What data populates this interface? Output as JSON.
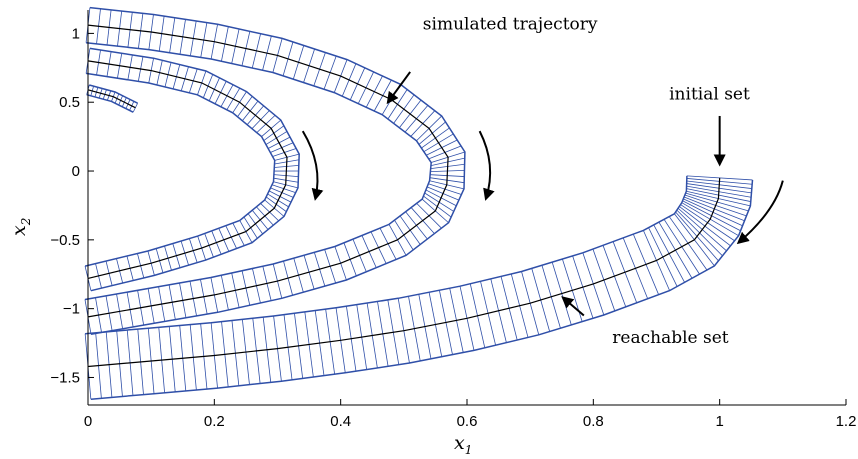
{
  "chart_data": {
    "type": "line",
    "title": "",
    "xlabel": "x",
    "xlabel_sub": "1",
    "ylabel": "x",
    "ylabel_sub": "2",
    "xlim": [
      0,
      1.2
    ],
    "ylim": [
      -1.7,
      1.17
    ],
    "xticks": [
      "0",
      "0.2",
      "0.4",
      "0.6",
      "0.8",
      "1",
      "1.2"
    ],
    "yticks": [
      "1",
      "0.5",
      "0",
      "−0.5",
      "−1",
      "−1.5"
    ],
    "xtick_values": [
      0,
      0.2,
      0.4,
      0.6,
      0.8,
      1.0,
      1.2
    ],
    "ytick_values": [
      1,
      0.5,
      0,
      -0.5,
      -1,
      -1.5
    ],
    "grid": false,
    "colors": {
      "band_edge": "#2f4fa8",
      "hatch": "#2f4fa8",
      "trajectory": "#000000",
      "arrow": "#000000"
    },
    "series": [
      {
        "role": "reachable-set-1",
        "center": [
          [
            0.0,
            1.06
          ],
          [
            0.1,
            1.01
          ],
          [
            0.2,
            0.94
          ],
          [
            0.3,
            0.84
          ],
          [
            0.4,
            0.69
          ],
          [
            0.48,
            0.52
          ],
          [
            0.54,
            0.31
          ],
          [
            0.57,
            0.1
          ],
          [
            0.568,
            -0.1
          ],
          [
            0.55,
            -0.29
          ],
          [
            0.49,
            -0.5
          ],
          [
            0.4,
            -0.67
          ],
          [
            0.3,
            -0.8
          ],
          [
            0.2,
            -0.9
          ],
          [
            0.1,
            -0.98
          ],
          [
            0.0,
            -1.06
          ]
        ],
        "half_width": 0.028
      },
      {
        "role": "reachable-set-2",
        "center": [
          [
            0.0,
            0.8
          ],
          [
            0.1,
            0.73
          ],
          [
            0.18,
            0.64
          ],
          [
            0.24,
            0.5
          ],
          [
            0.29,
            0.31
          ],
          [
            0.315,
            0.1
          ],
          [
            0.313,
            -0.1
          ],
          [
            0.295,
            -0.27
          ],
          [
            0.25,
            -0.44
          ],
          [
            0.18,
            -0.56
          ],
          [
            0.1,
            -0.67
          ],
          [
            0.0,
            -0.78
          ]
        ],
        "half_width": 0.02
      },
      {
        "role": "reachable-set-3",
        "center": [
          [
            0.0,
            0.59
          ],
          [
            0.04,
            0.54
          ],
          [
            0.075,
            0.46
          ]
        ],
        "half_width": 0.008
      },
      {
        "role": "reachable-set-4",
        "center": [
          [
            1.0,
            -0.05
          ],
          [
            0.998,
            -0.2
          ],
          [
            0.985,
            -0.35
          ],
          [
            0.96,
            -0.5
          ],
          [
            0.9,
            -0.65
          ],
          [
            0.8,
            -0.82
          ],
          [
            0.7,
            -0.96
          ],
          [
            0.6,
            -1.07
          ],
          [
            0.5,
            -1.16
          ],
          [
            0.4,
            -1.23
          ],
          [
            0.3,
            -1.29
          ],
          [
            0.2,
            -1.34
          ],
          [
            0.1,
            -1.38
          ],
          [
            0.0,
            -1.42
          ]
        ],
        "half_width": 0.052
      }
    ],
    "annotations": [
      {
        "text": "simulated trajectory",
        "at": [
          0.53,
          1.03
        ],
        "arrow_from": [
          0.51,
          0.72
        ],
        "arrow_to": [
          0.475,
          0.5
        ]
      },
      {
        "text": "initial set",
        "at": [
          0.92,
          0.52
        ],
        "arrow_from": [
          1.0,
          0.4
        ],
        "arrow_to": [
          1.0,
          0.05
        ]
      },
      {
        "text": "reachable set",
        "at": [
          0.83,
          -1.25
        ],
        "arrow_from": [
          0.785,
          -1.05
        ],
        "arrow_to": [
          0.752,
          -0.92
        ]
      }
    ],
    "direction_arrows": [
      {
        "from": [
          0.34,
          0.29
        ],
        "to": [
          0.36,
          -0.2
        ]
      },
      {
        "from": [
          0.62,
          0.29
        ],
        "to": [
          0.63,
          -0.2
        ]
      },
      {
        "from": [
          1.1,
          -0.07
        ],
        "to": [
          1.03,
          -0.52
        ]
      }
    ]
  }
}
